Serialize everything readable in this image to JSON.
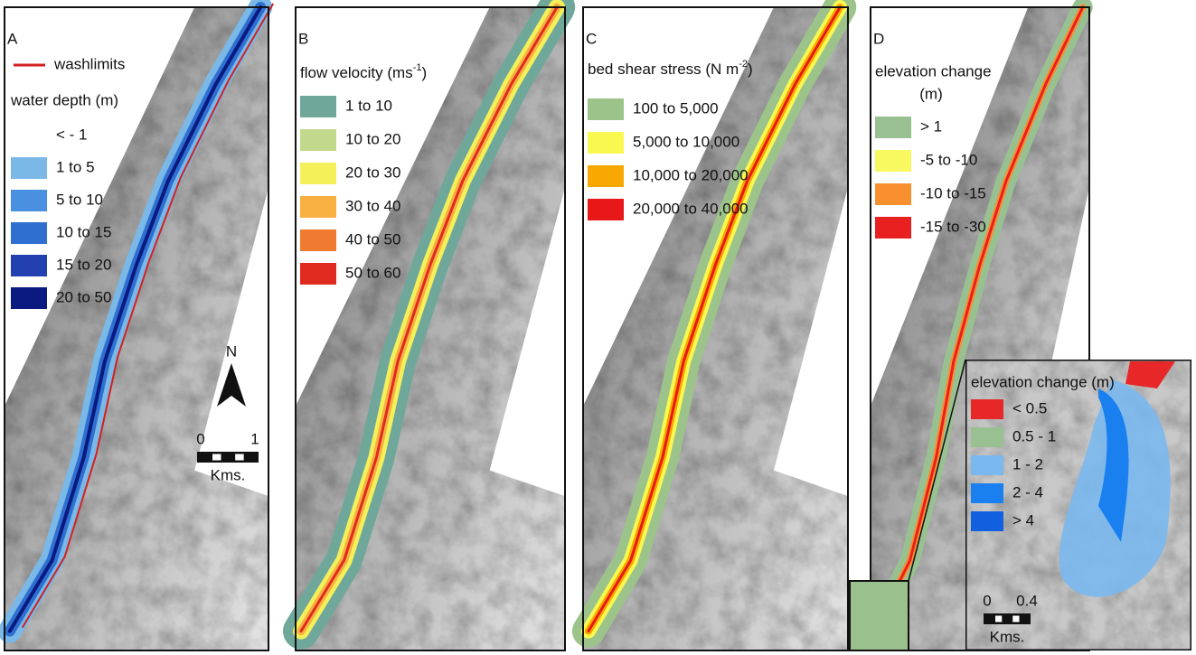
{
  "panels": [
    {
      "letter": "A",
      "line_legend": {
        "label": "washlimits",
        "color": "#d42020"
      },
      "legend_title": "water depth (m)",
      "items": [
        {
          "label": "< - 1"
        },
        {
          "label": "1 to 5",
          "color": "#7ab8e8"
        },
        {
          "label": "5 to 10",
          "color": "#4a90e0"
        },
        {
          "label": "10 to 15",
          "color": "#2e6fd0"
        },
        {
          "label": "15 to 20",
          "color": "#2240b0"
        },
        {
          "label": "20 to 50",
          "color": "#0a1a80"
        }
      ],
      "north": "N",
      "scale": {
        "start": "0",
        "end": "1",
        "unit": "Kms."
      }
    },
    {
      "letter": "B",
      "legend_title": {
        "before": "flow velocity (ms",
        "sup": "-1",
        "after": ")"
      },
      "items": [
        {
          "label": "1 to 10",
          "color": "#6fa89a"
        },
        {
          "label": "10 to 20",
          "color": "#c2d88a"
        },
        {
          "label": "20 to 30",
          "color": "#f4f05a"
        },
        {
          "label": "30 to 40",
          "color": "#f8b040"
        },
        {
          "label": "40 to 50",
          "color": "#f07a30"
        },
        {
          "label": "50 to 60",
          "color": "#e02a20"
        }
      ]
    },
    {
      "letter": "C",
      "legend_title": {
        "before": "bed shear stress (N m",
        "sup": "-2",
        "after": ")"
      },
      "items": [
        {
          "label": "100 to 5,000",
          "color": "#9cc48a"
        },
        {
          "label": "5,000 to 10,000",
          "color": "#f8f850"
        },
        {
          "label": "10,000 to 20,000",
          "color": "#f8a800"
        },
        {
          "label": "20,000 to 40,000",
          "color": "#e81818"
        }
      ]
    },
    {
      "letter": "D",
      "legend_title": "elevation change",
      "legend_title_2": "(m)",
      "items": [
        {
          "label": "> 1",
          "color": "#98c090"
        },
        {
          "label": "-5 to -10",
          "color": "#f8f860"
        },
        {
          "label": "-10 to -15",
          "color": "#f89030"
        },
        {
          "label": "-15 to -30",
          "color": "#e82020"
        }
      ]
    }
  ],
  "inset": {
    "legend_title": "elevation change (m)",
    "items": [
      {
        "label": "< 0.5",
        "color": "#e82828"
      },
      {
        "label": "0.5 - 1",
        "color": "#98c090"
      },
      {
        "label": "1 - 2",
        "color": "#7ab8f0"
      },
      {
        "label": "2 - 4",
        "color": "#1a80f0"
      },
      {
        "label": "> 4",
        "color": "#1060e0"
      }
    ],
    "scale": {
      "start": "0",
      "end": "0.4",
      "unit": "Kms."
    }
  }
}
